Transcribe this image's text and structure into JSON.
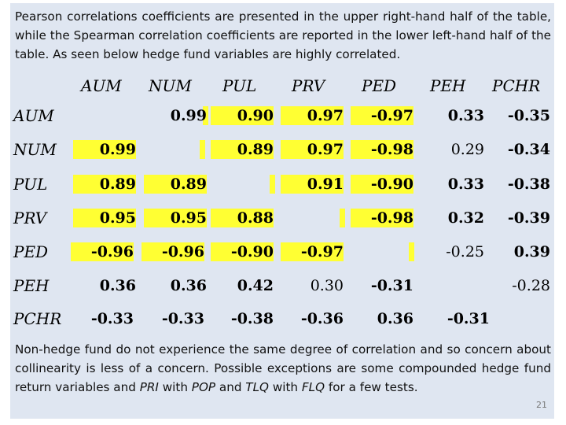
{
  "intro": "Pearson correlations coefficients are presented in the upper right-hand half of the table, while the Spearman correlation coefficients are reported in the lower left-hand half of the table. As seen below hedge fund variables are highly correlated.",
  "outro": {
    "part1": "Non-hedge fund do not experience the same degree of correlation and so concern about collinearity is less of a concern. Possible exceptions are some compounded hedge fund return variables and ",
    "em1": "PRI",
    "part2": " with ",
    "em2": "POP",
    "part3": " and ",
    "em3": "TLQ",
    "part4": " with ",
    "em4": "FLQ",
    "part5": " for a few tests."
  },
  "page_number": "21",
  "table": {
    "columns": [
      "AUM",
      "NUM",
      "PUL",
      "PRV",
      "PED",
      "PEH",
      "PCHR"
    ],
    "rows": [
      {
        "label": "AUM",
        "cells": [
          "",
          "0.99",
          "0.90",
          "0.97",
          "-0.97",
          "0.33",
          "-0.35"
        ]
      },
      {
        "label": "NUM",
        "cells": [
          "0.99",
          "",
          "0.89",
          "0.97",
          "-0.98",
          "0.29",
          "-0.34"
        ]
      },
      {
        "label": "PUL",
        "cells": [
          "0.89",
          "0.89",
          "",
          "0.91",
          "-0.90",
          "0.33",
          "-0.38"
        ]
      },
      {
        "label": "PRV",
        "cells": [
          "0.95",
          "0.95",
          "0.88",
          "",
          "-0.98",
          "0.32",
          "-0.39"
        ]
      },
      {
        "label": "PED",
        "cells": [
          "-0.96",
          "-0.96",
          "-0.90",
          "-0.97",
          "",
          "-0.25",
          "0.39"
        ]
      },
      {
        "label": "PEH",
        "cells": [
          "0.36",
          "0.36",
          "0.42",
          "0.30",
          "-0.31",
          "",
          "-0.28"
        ]
      },
      {
        "label": "PCHR",
        "cells": [
          "-0.33",
          "-0.33",
          "-0.38",
          "-0.36",
          "0.36",
          "-0.31",
          ""
        ]
      }
    ],
    "highlight_color": "#ffff33"
  }
}
